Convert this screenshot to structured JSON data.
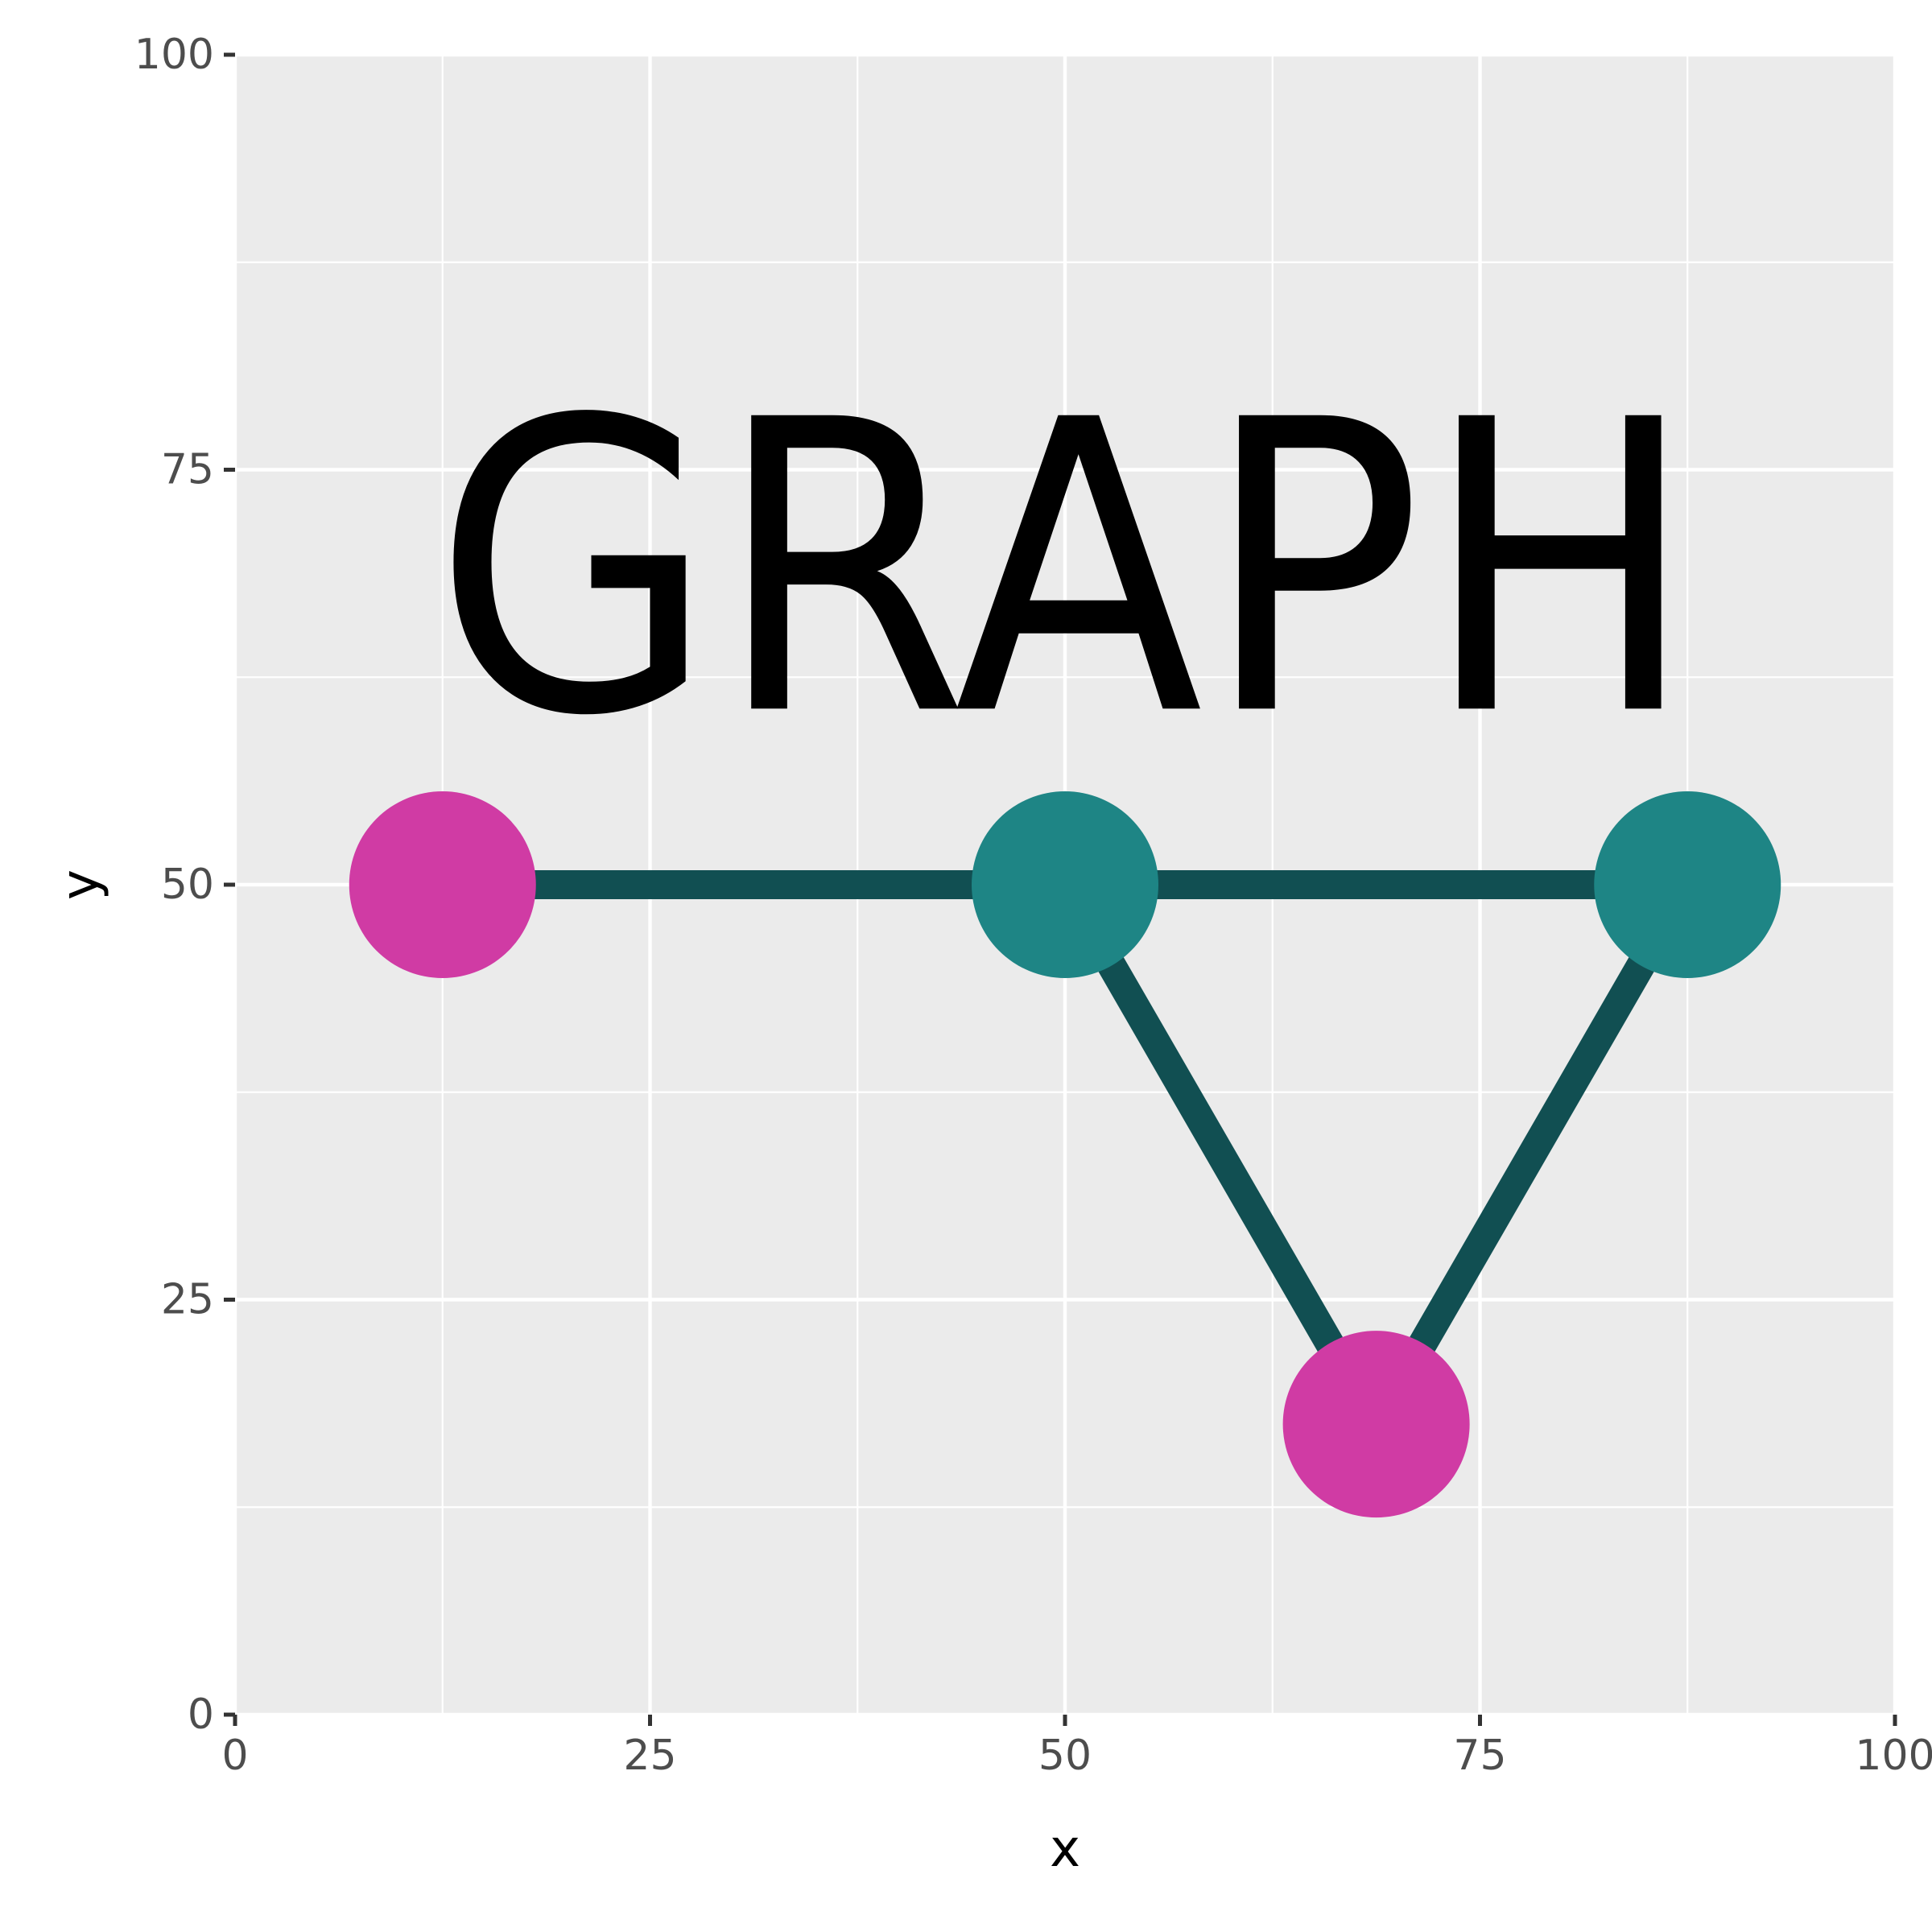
{
  "chart_data": {
    "type": "scatter",
    "title": "",
    "xlabel": "x",
    "ylabel": "y",
    "xlim": [
      0,
      100
    ],
    "ylim": [
      0,
      100
    ],
    "x_ticks": [
      "0",
      "25",
      "50",
      "75",
      "100"
    ],
    "y_ticks": [
      "0",
      "25",
      "50",
      "75",
      "100"
    ],
    "annotation": {
      "text": "GRAPH",
      "x": 50,
      "y": 69
    },
    "nodes": [
      {
        "x": 12.5,
        "y": 50,
        "color": "#D03BA4"
      },
      {
        "x": 50,
        "y": 50,
        "color": "#1E8585"
      },
      {
        "x": 87.5,
        "y": 50,
        "color": "#1E8585"
      },
      {
        "x": 68.75,
        "y": 17.5,
        "color": "#D03BA4"
      }
    ],
    "edges": [
      [
        0,
        1
      ],
      [
        1,
        2
      ],
      [
        1,
        3
      ],
      [
        3,
        2
      ]
    ],
    "grid": true,
    "colors": {
      "panel": "#EBEBEB",
      "grid": "#FFFFFF",
      "edge": "#114F52",
      "axis_text": "#4D4D4D"
    }
  }
}
